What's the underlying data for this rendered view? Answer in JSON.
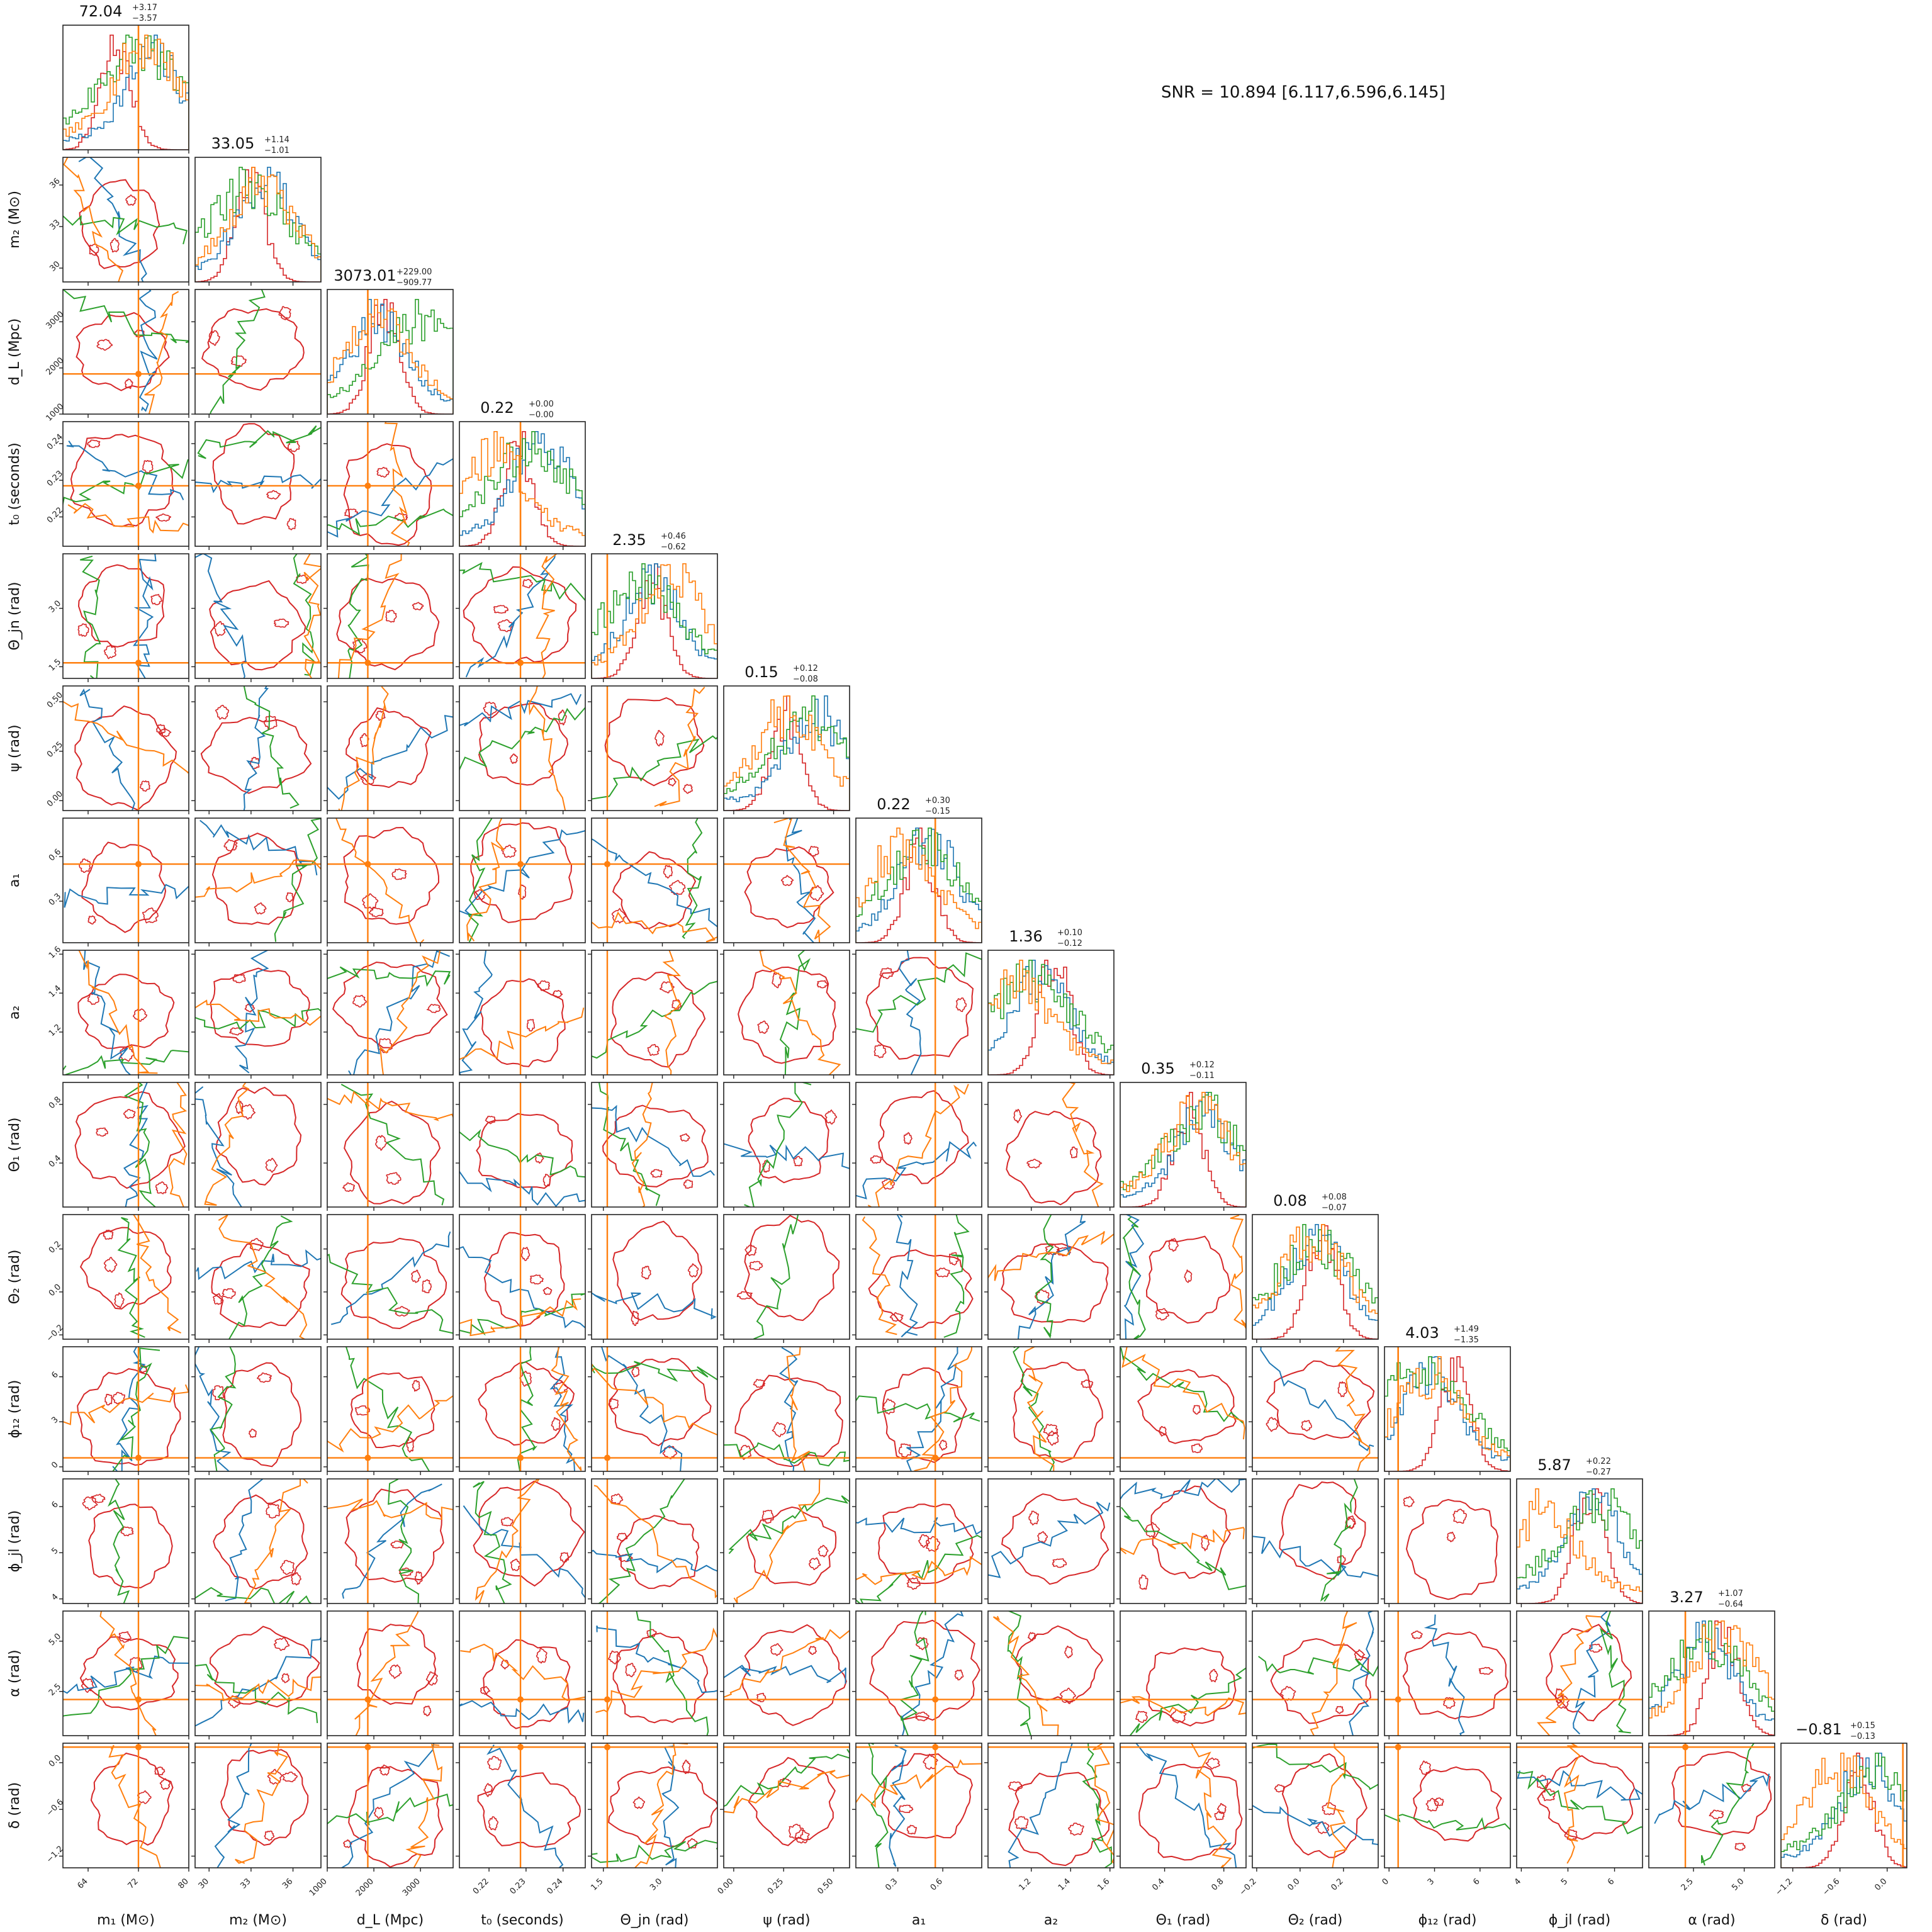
{
  "snr_text": "SNR = 10.894 [6.117,6.596,6.145]",
  "colors": {
    "red": "#d62728",
    "blue": "#1f77b4",
    "green": "#2ca02c",
    "orange": "#ff7f0e"
  },
  "chart_data": {
    "type": "corner",
    "parameters": [
      {
        "label": "m₁ (M⊙)",
        "range": [
          60,
          80
        ],
        "ticks": [
          "64",
          "72",
          "80"
        ],
        "title": "72.04",
        "err_plus": "+3.17",
        "err_minus": "−3.57",
        "truth": 72.0
      },
      {
        "label": "m₂ (M⊙)",
        "range": [
          29,
          38
        ],
        "ticks": [
          "30",
          "33",
          "36"
        ],
        "title": "33.05",
        "err_plus": "+1.14",
        "err_minus": "−1.01",
        "truth": null
      },
      {
        "label": "d_L (Mpc)",
        "range": [
          1000,
          3700
        ],
        "ticks": [
          "1000",
          "2000",
          "3000"
        ],
        "title": "3073.01",
        "err_plus": "+229.00",
        "err_minus": "−909.77",
        "truth": 1870
      },
      {
        "label": "t₀ (seconds)",
        "range": [
          0.212,
          0.246
        ],
        "ticks": [
          "0.22",
          "0.23",
          "0.24"
        ],
        "title": "0.22",
        "err_plus": "+0.00",
        "err_minus": "−0.00",
        "truth": 0.2285
      },
      {
        "label": "Θ_jn (rad)",
        "range": [
          1.2,
          4.4
        ],
        "ticks": [
          "1.5",
          "3.0"
        ],
        "title": "2.35",
        "err_plus": "+0.46",
        "err_minus": "−0.62",
        "truth": 1.6
      },
      {
        "label": "ψ (rad)",
        "range": [
          -0.05,
          0.58
        ],
        "ticks": [
          "0.00",
          "0.25",
          "0.50"
        ],
        "title": "0.15",
        "err_plus": "+0.12",
        "err_minus": "−0.08",
        "truth": null
      },
      {
        "label": "a₁",
        "range": [
          0.02,
          0.86
        ],
        "ticks": [
          "0.3",
          "0.6"
        ],
        "title": "0.22",
        "err_plus": "+0.30",
        "err_minus": "−0.15",
        "truth": 0.55
      },
      {
        "label": "a₂",
        "range": [
          0.98,
          1.62
        ],
        "ticks": [
          "1.2",
          "1.4",
          "1.6"
        ],
        "title": "1.36",
        "err_plus": "+0.10",
        "err_minus": "−0.12",
        "truth": null
      },
      {
        "label": "Θ₁ (rad)",
        "range": [
          0.1,
          0.95
        ],
        "ticks": [
          "0.4",
          "0.8"
        ],
        "title": "0.35",
        "err_plus": "+0.12",
        "err_minus": "−0.11",
        "truth": null
      },
      {
        "label": "Θ₂ (rad)",
        "range": [
          -0.22,
          0.36
        ],
        "ticks": [
          "−0.2",
          "0.0",
          "0.2"
        ],
        "title": "0.08",
        "err_plus": "+0.08",
        "err_minus": "−0.07",
        "truth": null
      },
      {
        "label": "ϕ₁₂ (rad)",
        "range": [
          -0.3,
          8.0
        ],
        "ticks": [
          "0",
          "3",
          "6"
        ],
        "title": "4.03",
        "err_plus": "+1.49",
        "err_minus": "−1.35",
        "truth": 0.6
      },
      {
        "label": "ϕ_jl (rad)",
        "range": [
          3.9,
          6.6
        ],
        "ticks": [
          "4",
          "5",
          "6"
        ],
        "title": "5.87",
        "err_plus": "+0.22",
        "err_minus": "−0.27",
        "truth": null
      },
      {
        "label": "α (rad)",
        "range": [
          0.3,
          6.5
        ],
        "ticks": [
          "2.5",
          "5.0"
        ],
        "title": "3.27",
        "err_plus": "+1.07",
        "err_minus": "−0.64",
        "truth": 2.1
      },
      {
        "label": "δ (rad)",
        "range": [
          -1.35,
          0.25
        ],
        "ticks": [
          "−1.2",
          "−0.6",
          "0.0"
        ],
        "title": "−0.81",
        "err_plus": "+0.15",
        "err_minus": "−0.13",
        "truth": 0.2
      }
    ],
    "series": [
      {
        "color": "red"
      },
      {
        "color": "blue"
      },
      {
        "color": "green"
      },
      {
        "color": "orange"
      }
    ],
    "truth_color": "orange"
  }
}
